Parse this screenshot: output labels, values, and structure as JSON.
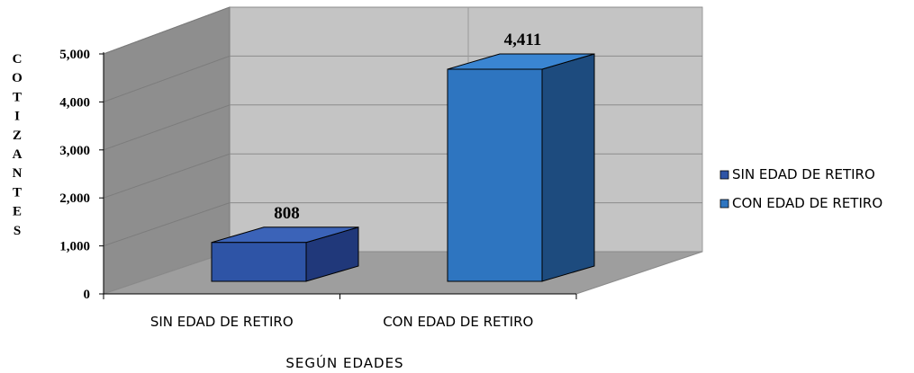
{
  "chart_data": {
    "type": "bar",
    "categories": [
      "SIN EDAD DE RETIRO",
      "CON EDAD DE RETIRO"
    ],
    "values": [
      808,
      4411
    ],
    "data_labels": [
      "808",
      "4,411"
    ],
    "xlabel": "SEGÚN  EDADES",
    "ylabel": "COTIZANTES",
    "ylim": [
      0,
      5000
    ],
    "yticks": [
      0,
      1000,
      2000,
      3000,
      4000,
      5000
    ],
    "ytick_labels": [
      "0",
      "1,000",
      "2,000",
      "3,000",
      "4,000",
      "5,000"
    ],
    "grid": true,
    "legend": {
      "placement": "right",
      "entries": [
        "SIN EDAD DE RETIRO",
        "CON EDAD DE RETIRO"
      ]
    },
    "colors": {
      "bar1_front": "#2e54a6",
      "bar1_top": "#3b63b8",
      "bar1_side": "#20387a",
      "bar2_front": "#2e75c0",
      "bar2_top": "#3a85d2",
      "bar2_side": "#1d4b7e",
      "back_wall": "#c4c4c4",
      "side_wall": "#8e8e8e",
      "floor": "#9e9e9e"
    }
  }
}
